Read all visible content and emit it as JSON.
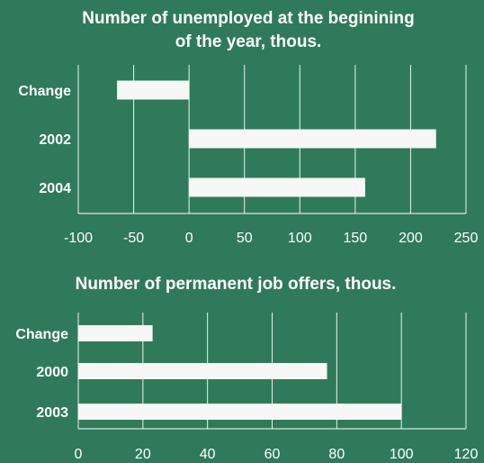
{
  "background_color": "#2f7a5a",
  "bar_color": "#f7f7f7",
  "chart_data": [
    {
      "type": "bar",
      "orientation": "horizontal",
      "title_lines": [
        "Number of unemployed at the beginining",
        "of the year, thous."
      ],
      "categories": [
        "Change",
        "2002",
        "2004"
      ],
      "values": [
        -65,
        223,
        159
      ],
      "xlim": [
        -100,
        250
      ],
      "xticks": [
        -100,
        -50,
        0,
        50,
        100,
        150,
        200,
        250
      ],
      "grid": true
    },
    {
      "type": "bar",
      "orientation": "horizontal",
      "title_lines": [
        "Number of permanent job offers, thous."
      ],
      "categories": [
        "Change",
        "2000",
        "2003"
      ],
      "values": [
        23,
        77,
        100
      ],
      "xlim": [
        0,
        120
      ],
      "xticks": [
        0,
        20,
        40,
        60,
        80,
        100,
        120
      ],
      "grid": true
    }
  ]
}
